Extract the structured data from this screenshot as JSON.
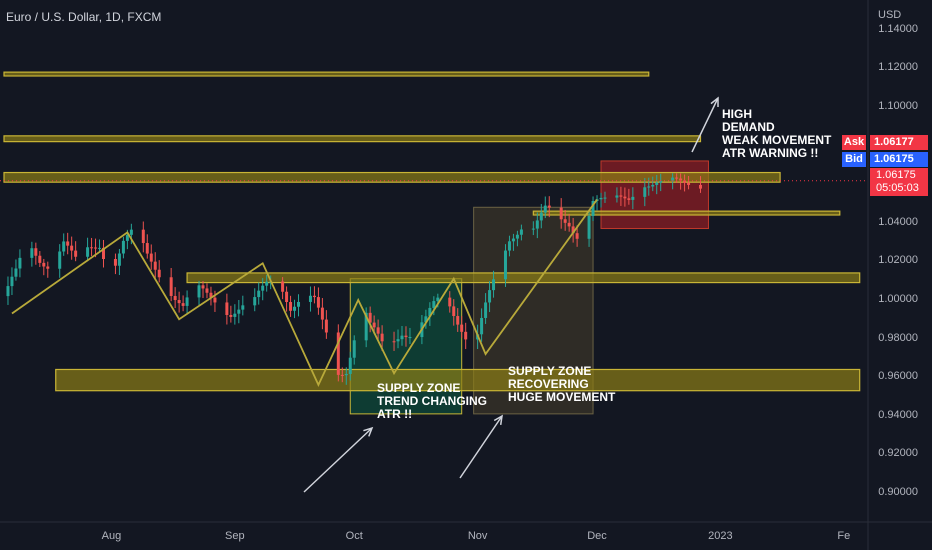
{
  "header": {
    "title": "Euro / U.S. Dollar, 1D, FXCM",
    "currency": "USD"
  },
  "price_scale": {
    "ask_label": "Ask",
    "ask_value": "1.06177",
    "bid_label": "Bid",
    "bid_value": "1.06175",
    "last_price": "1.06175",
    "countdown": "05:05:03"
  },
  "annotations": {
    "left_zone": "SUPPLY ZONE\nTREND CHANGING\nATR !!",
    "mid_zone": "SUPPLY ZONE\nRECOVERING\nHUGE MOVEMENT",
    "top_right": "HIGH\nDEMAND\nWEAK MOVEMENT\nATR WARNING !!"
  },
  "colors": {
    "background": "#131722",
    "up_candle": "#26a69a",
    "down_candle": "#ef5350",
    "zone_line": "#c9b536",
    "zone_fill": "#8c7d15",
    "trend_line": "#b8a93a",
    "green_box": "#0e4a3a",
    "beige_box": "#3a3428",
    "red_box": "#8b1e24"
  },
  "chart_data": {
    "type": "candlestick",
    "ylabel": "USD",
    "ylim": [
      0.885,
      1.145
    ],
    "y_ticks": [
      "0.90000",
      "0.92000",
      "0.94000",
      "0.96000",
      "0.98000",
      "1.00000",
      "1.02000",
      "1.04000",
      "1.06000",
      "1.08000",
      "1.10000",
      "1.12000",
      "1.14000"
    ],
    "x_ticks": [
      {
        "label": "Aug",
        "day": 27
      },
      {
        "label": "Sep",
        "day": 58
      },
      {
        "label": "Oct",
        "day": 88
      },
      {
        "label": "Nov",
        "day": 119
      },
      {
        "label": "Dec",
        "day": 149
      },
      {
        "label": "2023",
        "day": 180
      },
      {
        "label": "Fe",
        "day": 211
      }
    ],
    "close_series": [
      [
        0,
        1.002
      ],
      [
        3,
        1.012
      ],
      [
        6,
        1.028
      ],
      [
        9,
        1.022
      ],
      [
        12,
        1.02
      ],
      [
        15,
        1.03
      ],
      [
        18,
        1.018
      ],
      [
        21,
        1.025
      ],
      [
        24,
        1.03
      ],
      [
        27,
        1.016
      ],
      [
        30,
        1.03
      ],
      [
        33,
        1.034
      ],
      [
        36,
        1.022
      ],
      [
        39,
        1.015
      ],
      [
        42,
        1.006
      ],
      [
        45,
        0.996
      ],
      [
        48,
        1.004
      ],
      [
        51,
        1.002
      ],
      [
        54,
        1.0
      ],
      [
        57,
        0.995
      ],
      [
        60,
        0.996
      ],
      [
        63,
        0.997
      ],
      [
        66,
        1.008
      ],
      [
        69,
        1.014
      ],
      [
        72,
        0.998
      ],
      [
        75,
        1.0
      ],
      [
        78,
        0.997
      ],
      [
        81,
        0.982
      ],
      [
        84,
        0.965
      ],
      [
        86,
        0.966
      ],
      [
        88,
        0.981
      ],
      [
        90,
        0.996
      ],
      [
        92,
        0.984
      ],
      [
        95,
        0.976
      ],
      [
        97,
        0.979
      ],
      [
        100,
        0.986
      ],
      [
        103,
        0.983
      ],
      [
        106,
        0.988
      ],
      [
        108,
        0.995
      ],
      [
        110,
        1.0
      ],
      [
        112,
        0.998
      ],
      [
        115,
        0.988
      ],
      [
        118,
        0.975
      ],
      [
        121,
        0.995
      ],
      [
        124,
        1.012
      ],
      [
        127,
        1.032
      ],
      [
        130,
        1.041
      ],
      [
        133,
        1.038
      ],
      [
        136,
        1.045
      ],
      [
        139,
        1.04
      ],
      [
        142,
        1.04
      ],
      [
        145,
        1.034
      ],
      [
        148,
        1.052
      ],
      [
        151,
        1.049
      ],
      [
        154,
        1.051
      ],
      [
        157,
        1.054
      ],
      [
        160,
        1.063
      ],
      [
        163,
        1.06
      ],
      [
        166,
        1.058
      ],
      [
        169,
        1.06
      ],
      [
        172,
        1.062
      ],
      [
        175,
        1.062
      ]
    ],
    "horizontal_zones": [
      {
        "low": 1.116,
        "high": 1.118,
        "x_from": 0,
        "x_to": 162
      },
      {
        "low": 1.082,
        "high": 1.085,
        "x_from": 0,
        "x_to": 175
      },
      {
        "low": 1.061,
        "high": 1.066,
        "x_from": 0,
        "x_to": 195
      },
      {
        "low": 1.044,
        "high": 1.046,
        "x_from": 133,
        "x_to": 210
      },
      {
        "low": 1.009,
        "high": 1.014,
        "x_from": 46,
        "x_to": 215
      },
      {
        "low": 0.953,
        "high": 0.964,
        "x_from": 13,
        "x_to": 215
      }
    ],
    "boxes": [
      {
        "x_from": 87,
        "x_to": 115,
        "low": 0.941,
        "high": 1.011,
        "kind": "green"
      },
      {
        "x_from": 118,
        "x_to": 148,
        "low": 0.941,
        "high": 1.048,
        "kind": "beige"
      },
      {
        "x_from": 150,
        "x_to": 177,
        "low": 1.037,
        "high": 1.072,
        "kind": "red"
      }
    ],
    "trend_lines": [
      [
        [
          2,
          0.993
        ],
        [
          31,
          1.035
        ],
        [
          44,
          0.99
        ],
        [
          65,
          1.019
        ],
        [
          79,
          0.956
        ],
        [
          89,
          1.0
        ],
        [
          98,
          0.962
        ],
        [
          113,
          1.011
        ],
        [
          121,
          0.972
        ],
        [
          149,
          1.052
        ]
      ]
    ],
    "last_price": 1.06175
  }
}
